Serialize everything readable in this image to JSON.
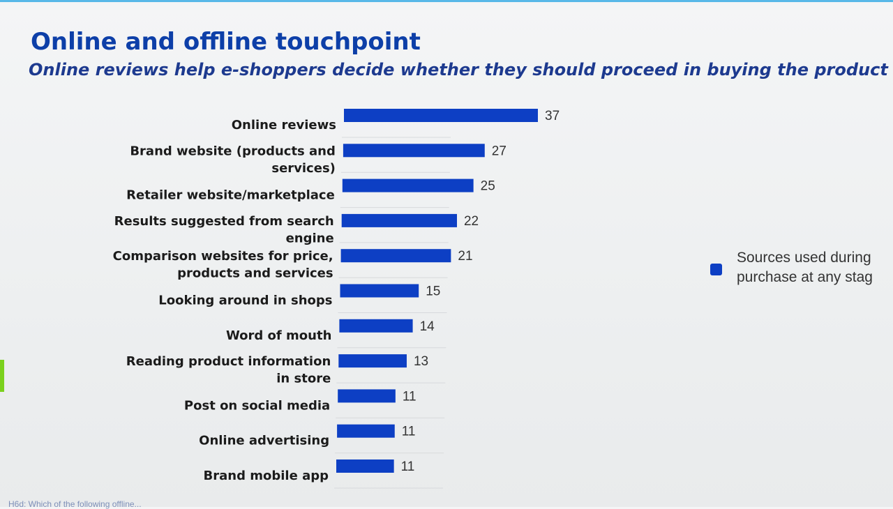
{
  "header": {
    "title": "Online and offline touchpoint",
    "subtitle": "Online reviews help e-shoppers decide whether they should proceed in buying the product"
  },
  "legend": {
    "line1": "Sources used during",
    "line2": "purchase at any stag"
  },
  "footnote": "H6d: Which of the following offline...",
  "colors": {
    "bar": "#0d3fc4",
    "title": "#0d3fa8",
    "accent_left": "#7bd11d",
    "top_strip": "#58b8e8"
  },
  "chart_data": {
    "type": "bar",
    "orientation": "horizontal",
    "title": "Online and offline touchpoint",
    "subtitle": "Online reviews help e-shoppers decide whether they should proceed in buying the product",
    "xlabel": "",
    "ylabel": "",
    "xlim": [
      0,
      40
    ],
    "grid": false,
    "legend_position": "right",
    "categories": [
      "Online reviews",
      "Brand website (products and services)",
      "Retailer website/marketplace",
      "Results suggested from search engine",
      "Comparison websites for price, products and services",
      "Looking around in shops",
      "Word of mouth",
      "Reading product information in store",
      "Post on social media",
      "Online advertising",
      "Brand mobile app"
    ],
    "category_lines": [
      [
        "Online reviews"
      ],
      [
        "Brand website (products and",
        "services)"
      ],
      [
        "Retailer website/marketplace"
      ],
      [
        "Results suggested from search",
        "engine"
      ],
      [
        "Comparison websites for price,",
        "products and services"
      ],
      [
        "Looking around in shops"
      ],
      [
        "Word of mouth"
      ],
      [
        "Reading product information",
        "in store"
      ],
      [
        "Post on social media"
      ],
      [
        "Online advertising"
      ],
      [
        "Brand mobile app"
      ]
    ],
    "series": [
      {
        "name": "Sources used during purchase at any stag",
        "values": [
          37,
          27,
          25,
          22,
          21,
          15,
          14,
          13,
          11,
          11,
          11
        ]
      }
    ]
  }
}
